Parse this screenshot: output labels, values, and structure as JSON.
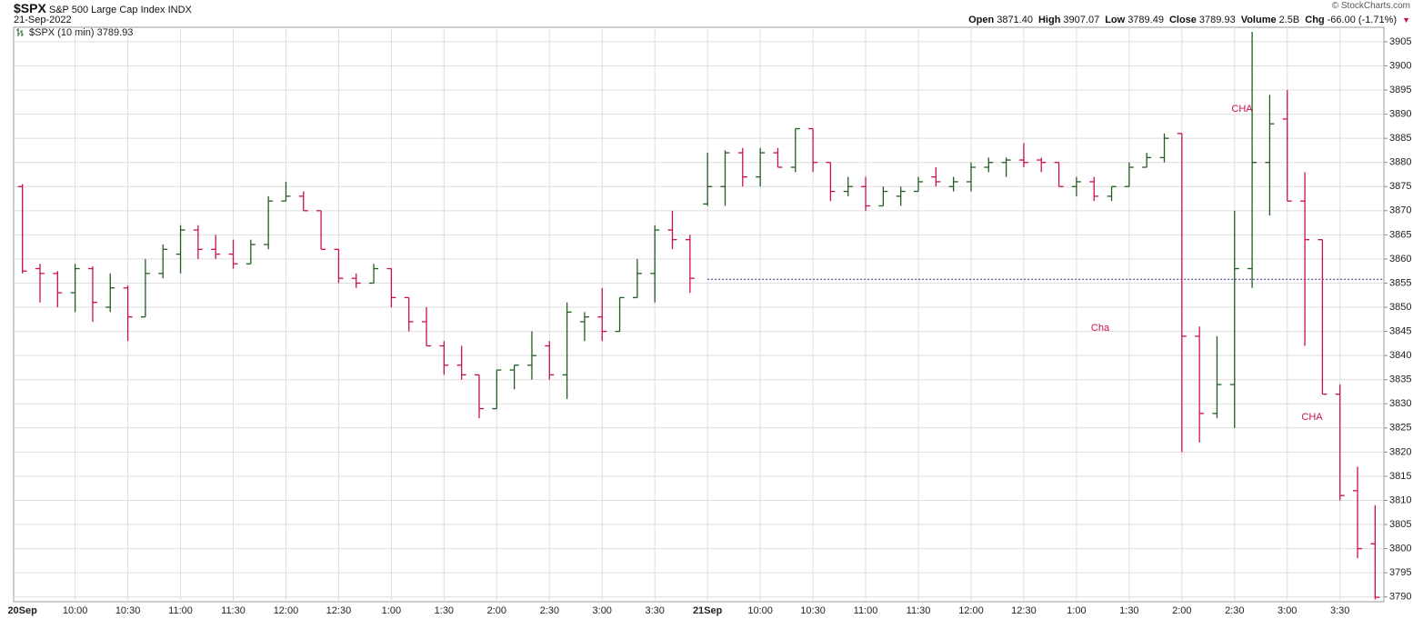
{
  "header": {
    "symbol": "$SPX",
    "name": "S&P 500 Large Cap Index",
    "exchange": "INDX",
    "date": "21-Sep-2022",
    "copyright": "© StockCharts.com",
    "stats": [
      {
        "label": "Open",
        "value": "3871.40"
      },
      {
        "label": "High",
        "value": "3907.07"
      },
      {
        "label": "Low",
        "value": "3789.49"
      },
      {
        "label": "Close",
        "value": "3789.93"
      },
      {
        "label": "Volume",
        "value": "2.5B"
      },
      {
        "label": "Chg",
        "value": "-66.00 (-1.71%)"
      }
    ]
  },
  "chart_data": {
    "type": "ohlc",
    "categories": [
      "20Sep",
      null,
      null,
      "10:00",
      null,
      null,
      "10:30",
      null,
      null,
      "11:00",
      null,
      null,
      "11:30",
      null,
      null,
      "12:00",
      null,
      null,
      "12:30",
      null,
      null,
      "1:00",
      null,
      null,
      "1:30",
      null,
      null,
      "2:00",
      null,
      null,
      "2:30",
      null,
      null,
      "3:00",
      null,
      null,
      "3:30",
      null,
      null,
      "21Sep",
      null,
      null,
      "10:00",
      null,
      null,
      "10:30",
      null,
      null,
      "11:00",
      null,
      null,
      "11:30",
      null,
      null,
      "12:00",
      null,
      null,
      "12:30",
      null,
      null,
      "1:00",
      null,
      null,
      "1:30",
      null,
      null,
      "2:00",
      null,
      null,
      "2:30",
      null,
      null,
      "3:00",
      null,
      null,
      "3:30",
      null,
      null
    ],
    "series": [
      {
        "name": "$SPX (10 min)",
        "last": 3789.93,
        "up_color": "#1f5e1f",
        "down_color": "#c8104a",
        "open": [
          3875,
          3858,
          3857,
          3853,
          3858,
          3850,
          3854,
          3848,
          3857,
          3861,
          3866,
          3862,
          3861,
          3859,
          3863,
          3872,
          3873,
          3870,
          3862,
          3856,
          3855,
          3858,
          3852,
          3847,
          3842,
          3838,
          3836,
          3829,
          3837,
          3838,
          3842,
          3836,
          3847,
          3848,
          3845,
          3852,
          3857,
          3866,
          3864,
          3871.4,
          3875,
          3882,
          3877,
          3882,
          3879,
          3887,
          3880,
          3874,
          3875,
          3871,
          3873,
          3874,
          3877,
          3875,
          3876,
          3879,
          3880,
          3880.5,
          3880.5,
          3880,
          3875,
          3876,
          3873,
          3875,
          3879,
          3881,
          3886,
          3844,
          3828,
          3834,
          3858,
          3880,
          3889,
          3872,
          3864,
          3832,
          3812,
          3801
        ],
        "high": [
          3875.5,
          3859,
          3857.5,
          3859,
          3858.5,
          3857,
          3854.5,
          3860,
          3863,
          3867,
          3867,
          3865,
          3864,
          3864,
          3873,
          3876,
          3874,
          3870,
          3862,
          3857,
          3859,
          3858,
          3852,
          3850,
          3843,
          3842,
          3836,
          3837,
          3838,
          3845,
          3843,
          3851,
          3849,
          3854,
          3852,
          3860,
          3867,
          3870,
          3865,
          3882,
          3882.5,
          3883,
          3883,
          3883,
          3887,
          3887,
          3880,
          3877,
          3877,
          3875,
          3875,
          3877,
          3879,
          3877,
          3880,
          3881,
          3881,
          3884,
          3881,
          3880,
          3877,
          3877,
          3875,
          3880,
          3882,
          3886,
          3886,
          3846,
          3844,
          3870,
          3907.07,
          3894,
          3895,
          3878,
          3864,
          3834,
          3817,
          3809
        ],
        "low": [
          3857,
          3851,
          3850,
          3849,
          3847,
          3849,
          3843,
          3848,
          3856,
          3857,
          3860,
          3860,
          3858,
          3859,
          3862,
          3872,
          3870,
          3862,
          3855,
          3854,
          3855,
          3850,
          3845,
          3842,
          3836,
          3835,
          3827,
          3829,
          3833,
          3835,
          3835,
          3831,
          3843,
          3843,
          3845,
          3852,
          3851,
          3862,
          3853,
          3871,
          3871,
          3875,
          3875,
          3879,
          3878,
          3878,
          3872,
          3873,
          3870,
          3871,
          3871,
          3874,
          3875,
          3874,
          3874,
          3878,
          3877,
          3879,
          3878,
          3875,
          3873,
          3872,
          3872,
          3875,
          3879,
          3880,
          3820,
          3822,
          3827,
          3825,
          3854,
          3869,
          3872,
          3842,
          3832,
          3810,
          3798,
          3789.49
        ],
        "close": [
          3857.5,
          3857,
          3853,
          3858,
          3851,
          3854,
          3848,
          3857,
          3862,
          3866,
          3862,
          3861,
          3859,
          3863,
          3872,
          3873,
          3870,
          3862,
          3856,
          3855,
          3858,
          3852,
          3847,
          3842,
          3838,
          3836,
          3829,
          3837,
          3838,
          3840,
          3836,
          3849,
          3848,
          3845,
          3852,
          3857,
          3866,
          3864,
          3856,
          3875,
          3882,
          3877,
          3882,
          3879,
          3887,
          3880,
          3874,
          3875,
          3871,
          3874,
          3874,
          3876,
          3876,
          3876,
          3879,
          3880,
          3880.5,
          3880,
          3880,
          3875,
          3876,
          3873,
          3875,
          3879,
          3881,
          3885,
          3844,
          3828,
          3834,
          3858,
          3880,
          3888,
          3872,
          3864,
          3832,
          3811,
          3800,
          3789.93
        ]
      }
    ],
    "reference_line": {
      "value": 3855.8,
      "color": "#2a2a8c"
    },
    "annotations": [
      {
        "text": "CHA",
        "color": "#c8104a"
      },
      {
        "text": "Cha",
        "color": "#c8104a"
      },
      {
        "text": "CHA",
        "color": "#c8104a"
      }
    ],
    "ylim": [
      3789,
      3908
    ],
    "yticks": [
      3790,
      3795,
      3800,
      3805,
      3810,
      3815,
      3820,
      3825,
      3830,
      3835,
      3840,
      3845,
      3850,
      3855,
      3860,
      3865,
      3870,
      3875,
      3880,
      3885,
      3890,
      3895,
      3900,
      3905
    ],
    "grid": true
  }
}
